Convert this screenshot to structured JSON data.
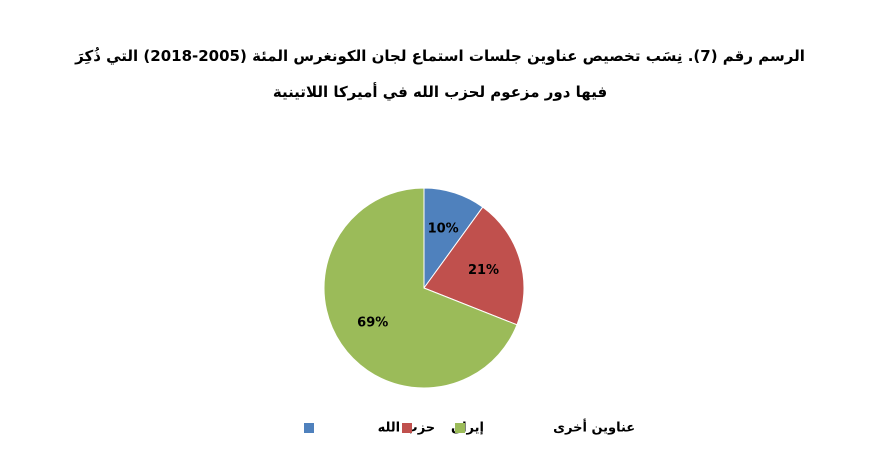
{
  "chart_data": {
    "type": "pie",
    "title": "الرسم رقم (7). نِسَب تخصيص عناوين جلسات استماع لجان الكونغرس المئة (2005-2018) التي ذُكِرَ فيها دور مزعوم لحزب الله في أميركا اللاتينية",
    "categories": [
      "حزب الله",
      "إيران",
      "عناوين أخرى"
    ],
    "values": [
      10,
      21,
      69
    ],
    "value_labels": [
      "10%",
      "21%",
      "69%"
    ],
    "colors": [
      "#4f81bd",
      "#c0504d",
      "#9bbb59"
    ]
  }
}
